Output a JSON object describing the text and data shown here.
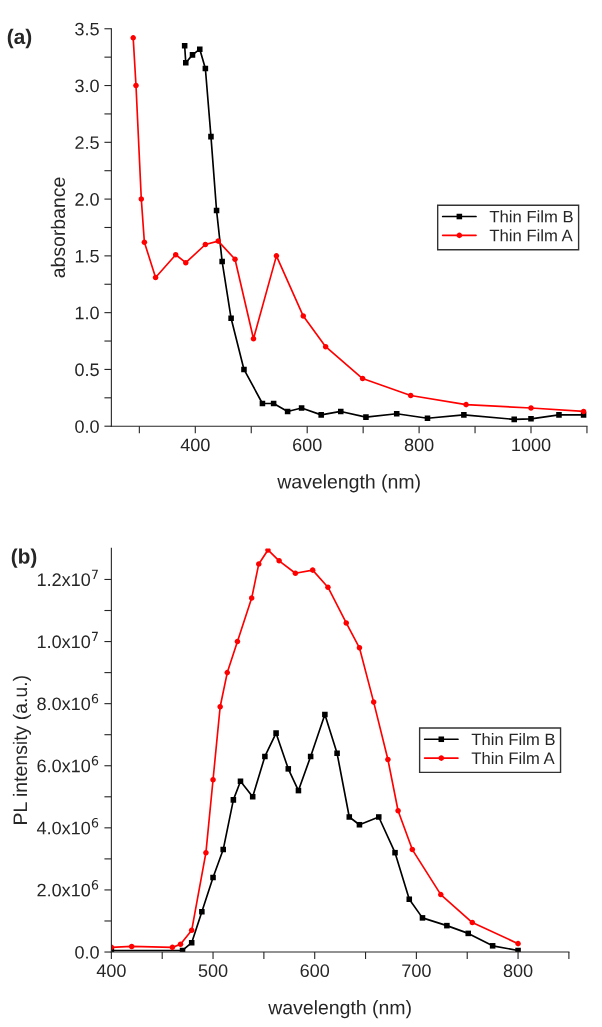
{
  "chart_data": [
    {
      "type": "line",
      "xlabel": "wavelength (nm)",
      "ylabel": "absorbance",
      "annotations": [
        "(a)"
      ],
      "legend": "center right",
      "xlim": [
        250,
        1100
      ],
      "ylim": [
        0,
        3.5
      ],
      "xticks": [
        {
          "value": 300,
          "label": null
        },
        400,
        {
          "value": 500,
          "label": null
        },
        600,
        {
          "value": 700,
          "label": null
        },
        800,
        {
          "value": 900,
          "label": null
        },
        1000,
        {
          "value": 1100,
          "label": null
        }
      ],
      "yticks": [
        {
          "value": 0,
          "label": "0.0"
        },
        {
          "value": 0.25,
          "label": null
        },
        0.5,
        {
          "value": 0.75,
          "label": null
        },
        {
          "value": 1,
          "label": "1.0"
        },
        {
          "value": 1.25,
          "label": null
        },
        1.5,
        {
          "value": 1.75,
          "label": null
        },
        {
          "value": 2,
          "label": "2.0"
        },
        {
          "value": 2.25,
          "label": null
        },
        2.5,
        {
          "value": 2.75,
          "label": null
        },
        {
          "value": 3,
          "label": "3.0"
        },
        {
          "value": 3.25,
          "label": null
        },
        3.5
      ],
      "series": [
        {
          "name": "Thin Film B",
          "color": "#000000",
          "marker": "square",
          "x": [
            381,
            383,
            395,
            408,
            418,
            428,
            438,
            448,
            464,
            487,
            520,
            540,
            565,
            590,
            625,
            660,
            705,
            760,
            815,
            880,
            970,
            1000,
            1050,
            1094
          ],
          "values": [
            3.35,
            3.2,
            3.27,
            3.32,
            3.15,
            2.55,
            1.9,
            1.45,
            0.95,
            0.5,
            0.2,
            0.2,
            0.13,
            0.16,
            0.1,
            0.13,
            0.08,
            0.11,
            0.07,
            0.1,
            0.06,
            0.065,
            0.1,
            0.1
          ]
        },
        {
          "name": "Thin Film A",
          "color": "#ff0000",
          "marker": "circle",
          "x": [
            289,
            294,
            303.5,
            309,
            329,
            365,
            383,
            418,
            441,
            471,
            504,
            545,
            593,
            633,
            699,
            785,
            884,
            1000,
            1094
          ],
          "values": [
            3.42,
            3.0,
            2.0,
            1.62,
            1.31,
            1.51,
            1.44,
            1.6,
            1.63,
            1.47,
            0.77,
            1.5,
            0.97,
            0.7,
            0.42,
            0.27,
            0.19,
            0.16,
            0.13
          ]
        }
      ]
    },
    {
      "type": "line",
      "xlabel": "wavelength (nm)",
      "ylabel": "PL intensity (a.u.)",
      "annotations": [
        "(b)"
      ],
      "legend": "center right",
      "xlim": [
        400,
        850
      ],
      "ylim": [
        0,
        13000000
      ],
      "xticks": [
        400,
        {
          "value": 450,
          "label": null
        },
        500,
        {
          "value": 550,
          "label": null
        },
        600,
        {
          "value": 650,
          "label": null
        },
        700,
        {
          "value": 750,
          "label": null
        },
        800,
        {
          "value": 850,
          "label": null
        }
      ],
      "yticks": [
        {
          "value": 0,
          "label": "0.0"
        },
        {
          "value": 1000000,
          "label": null
        },
        {
          "value": 2000000,
          "label": "2.0x10$^{6}$"
        },
        {
          "value": 3000000,
          "label": null
        },
        {
          "value": 4000000,
          "label": "4.0x10$^{6}$"
        },
        {
          "value": 5000000,
          "label": null
        },
        {
          "value": 6000000,
          "label": "6.0x10$^{6}$"
        },
        {
          "value": 7000000,
          "label": null
        },
        {
          "value": 8000000,
          "label": "8.0x10$^{6}$"
        },
        {
          "value": 9000000,
          "label": null
        },
        {
          "value": 10000000,
          "label": "1.0x10$^{7}$"
        },
        {
          "value": 11000000,
          "label": null
        },
        {
          "value": 12000000,
          "label": "1.2x10$^{7}$"
        }
      ],
      "series": [
        {
          "name": "Thin Film B",
          "color": "#000000",
          "marker": "square",
          "x": [
            400,
            470,
            479,
            489,
            500,
            510,
            520,
            527,
            539,
            551,
            562,
            574,
            584,
            596,
            610,
            622,
            634,
            644,
            663,
            679,
            693,
            706,
            730,
            751,
            775,
            800
          ],
          "values": [
            50000,
            50000,
            300000,
            1300000,
            2400000,
            3300000,
            4900000,
            5500000,
            5000000,
            6300000,
            7050000,
            5900000,
            5200000,
            6300000,
            7650000,
            6400000,
            4350000,
            4100000,
            4350000,
            3200000,
            1700000,
            1100000,
            850000,
            600000,
            200000,
            50000
          ]
        },
        {
          "name": "Thin Film A",
          "color": "#ff0000",
          "marker": "circle",
          "x": [
            400,
            420,
            460,
            468,
            479,
            493,
            500,
            507,
            514,
            524,
            538,
            545,
            554,
            565,
            581,
            598,
            613,
            631,
            644,
            658,
            672,
            682,
            696,
            724,
            755,
            800
          ],
          "values": [
            150000,
            180000,
            150000,
            250000,
            700000,
            3200000,
            5550000,
            7900000,
            9000000,
            10000000,
            11400000,
            12500000,
            12950000,
            12600000,
            12200000,
            12300000,
            11750000,
            10600000,
            9800000,
            8050000,
            6200000,
            4550000,
            3300000,
            1850000,
            950000,
            270000
          ]
        }
      ]
    }
  ]
}
